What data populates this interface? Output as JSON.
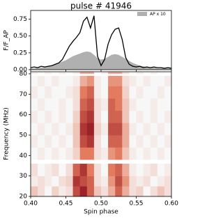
{
  "chart_data": [
    {
      "type": "line",
      "title": "pulse # 41946",
      "y_label": "F/F_AP",
      "x": [
        0.4,
        0.405,
        0.41,
        0.415,
        0.42,
        0.425,
        0.43,
        0.435,
        0.44,
        0.445,
        0.45,
        0.455,
        0.46,
        0.465,
        0.47,
        0.475,
        0.48,
        0.485,
        0.49,
        0.495,
        0.5,
        0.505,
        0.51,
        0.515,
        0.52,
        0.525,
        0.53,
        0.535,
        0.54,
        0.545,
        0.55,
        0.555,
        0.56,
        0.565,
        0.57,
        0.575,
        0.58,
        0.585,
        0.59,
        0.595,
        0.6
      ],
      "series": [
        {
          "name": "AP x 10",
          "type": "area",
          "color": "#b0b0b0",
          "values": [
            0.02,
            0.02,
            0.03,
            0.03,
            0.04,
            0.05,
            0.06,
            0.08,
            0.1,
            0.12,
            0.14,
            0.17,
            0.2,
            0.22,
            0.24,
            0.26,
            0.27,
            0.26,
            0.22,
            0.17,
            0.15,
            0.16,
            0.19,
            0.22,
            0.23,
            0.22,
            0.19,
            0.16,
            0.13,
            0.1,
            0.08,
            0.06,
            0.05,
            0.04,
            0.03,
            0.03,
            0.02,
            0.02,
            0.02,
            0.02,
            0.02
          ]
        },
        {
          "type": "line",
          "color": "#000000",
          "values": [
            0.03,
            0.04,
            0.03,
            0.05,
            0.04,
            0.05,
            0.06,
            0.08,
            0.1,
            0.15,
            0.25,
            0.35,
            0.42,
            0.48,
            0.55,
            0.72,
            0.78,
            0.62,
            0.8,
            0.2,
            0.06,
            0.15,
            0.38,
            0.52,
            0.6,
            0.62,
            0.45,
            0.18,
            0.08,
            0.05,
            0.04,
            0.05,
            0.03,
            0.04,
            0.03,
            0.04,
            0.03,
            0.03,
            0.02,
            0.03,
            0.02
          ]
        }
      ],
      "xlim": [
        0.4,
        0.6
      ],
      "ylim": [
        0,
        0.88
      ],
      "yticks": [
        {
          "value": 0,
          "label": "0.00"
        },
        {
          "value": 0.25,
          "label": "0.25"
        },
        {
          "value": 0.5,
          "label": "0.50"
        },
        {
          "value": 0.75,
          "label": "0.75"
        }
      ],
      "legend": "upper right"
    },
    {
      "type": "heatmap",
      "x_label": "Spin phase",
      "y_label": "Frequency (MHz)",
      "x_edges": [
        0.4,
        0.41,
        0.42,
        0.43,
        0.44,
        0.45,
        0.46,
        0.47,
        0.48,
        0.49,
        0.5,
        0.51,
        0.52,
        0.53,
        0.54,
        0.55,
        0.56,
        0.57,
        0.58,
        0.59,
        0.6
      ],
      "y_edges": [
        20,
        25,
        30,
        36,
        38,
        44,
        50,
        56,
        62,
        68,
        74,
        79,
        80,
        81
      ],
      "z": [
        [
          0.2,
          0.1,
          0,
          0.15,
          0.05,
          0.1,
          0.7,
          0.9,
          0.6,
          0.2,
          0.1,
          0.3,
          0.6,
          0.3,
          0.1,
          0.15,
          0,
          0.1,
          0.2,
          0.1
        ],
        [
          0.05,
          0.1,
          0.05,
          0,
          0.1,
          0.15,
          0.8,
          0.7,
          0.6,
          0.1,
          0.05,
          0.4,
          0.7,
          0.4,
          0.1,
          0.05,
          0.1,
          0,
          0.05,
          0.1
        ],
        [
          0.1,
          0,
          0.05,
          0.1,
          0,
          0.1,
          0.6,
          0.8,
          0.5,
          0.1,
          0,
          0.5,
          0.6,
          0.3,
          0.05,
          0,
          0.05,
          0.1,
          0,
          0.05
        ],
        [
          null,
          null,
          null,
          null,
          null,
          null,
          null,
          null,
          null,
          null,
          null,
          null,
          null,
          null,
          null,
          null,
          null,
          null,
          null,
          null
        ],
        [
          0,
          0.05,
          0,
          0.05,
          0,
          0.05,
          0.15,
          0.5,
          0.5,
          0.1,
          0.05,
          0.4,
          0.5,
          0.2,
          0.05,
          0,
          0.05,
          0,
          0.05,
          0
        ],
        [
          0.05,
          0,
          0.05,
          0,
          0.05,
          0,
          0.2,
          0.7,
          0.8,
          0.1,
          0,
          0.6,
          0.6,
          0.3,
          0,
          0.05,
          0,
          0.05,
          0,
          0.05
        ],
        [
          0,
          0.05,
          0,
          0.05,
          0,
          0.05,
          0.2,
          0.8,
          0.9,
          0.15,
          0.05,
          0.7,
          0.7,
          0.3,
          0.05,
          0,
          0.05,
          0,
          0.05,
          0
        ],
        [
          0.05,
          0,
          0.05,
          0,
          0.05,
          0,
          0.15,
          0.7,
          0.8,
          0.1,
          0,
          0.6,
          0.6,
          0.2,
          0,
          0.05,
          0,
          0.05,
          0,
          0.05
        ],
        [
          0,
          0.05,
          0,
          0,
          0.05,
          0,
          0.1,
          0.6,
          0.7,
          0.1,
          0.05,
          0.6,
          0.5,
          0.2,
          0.05,
          0,
          0,
          0.05,
          0,
          0
        ],
        [
          0.05,
          0,
          0.05,
          0,
          0,
          0.05,
          0.1,
          0.5,
          0.6,
          0.05,
          0,
          0.5,
          0.5,
          0.15,
          0,
          0.05,
          0,
          0,
          0.05,
          0
        ],
        [
          0,
          0.05,
          0,
          0.05,
          0,
          0,
          0.05,
          0.3,
          0.4,
          0.05,
          0,
          0.4,
          0.4,
          0.1,
          0.05,
          0,
          0.05,
          0,
          0,
          0.05
        ],
        [
          null,
          null,
          null,
          null,
          null,
          null,
          null,
          null,
          null,
          null,
          null,
          null,
          null,
          null,
          null,
          null,
          null,
          null,
          null,
          null
        ],
        [
          0.05,
          0,
          0.05,
          0,
          0.05,
          0,
          0.05,
          0.3,
          0.3,
          0,
          0.05,
          0.3,
          0.3,
          0.1,
          0,
          0.05,
          0,
          0.05,
          0,
          0
        ]
      ],
      "xlim": [
        0.4,
        0.6
      ],
      "ylim": [
        20,
        81
      ],
      "xticks": [
        {
          "value": 0.4,
          "label": "0.40"
        },
        {
          "value": 0.45,
          "label": "0.45"
        },
        {
          "value": 0.5,
          "label": "0.50"
        },
        {
          "value": 0.55,
          "label": "0.55"
        },
        {
          "value": 0.6,
          "label": "0.60"
        }
      ],
      "yticks": [
        20,
        30,
        40,
        50,
        60,
        70,
        80
      ],
      "colormap": [
        "#f7f7f7",
        "#e37b5f",
        "#8b0a1a"
      ]
    }
  ]
}
